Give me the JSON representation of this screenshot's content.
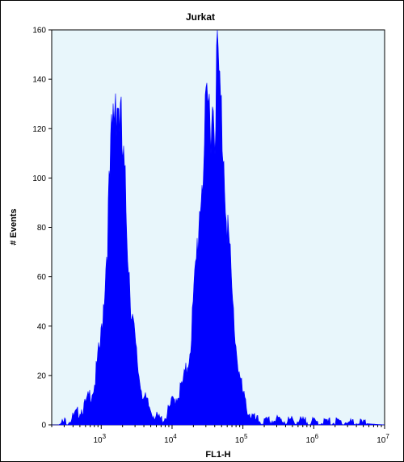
{
  "chart_data": {
    "type": "area",
    "title": "Jurkat",
    "xlabel": "FL1-H",
    "ylabel": "# Events",
    "x_scale": "log",
    "xlim": [
      200,
      10000000
    ],
    "ylim": [
      0,
      160
    ],
    "y_ticks": [
      "0",
      "20",
      "40",
      "60",
      "80",
      "100",
      "120",
      "140",
      "160"
    ],
    "x_ticks": [
      {
        "base": "10",
        "exp": "3",
        "value": 1000
      },
      {
        "base": "10",
        "exp": "4",
        "value": 10000
      },
      {
        "base": "10",
        "exp": "5",
        "value": 100000
      },
      {
        "base": "10",
        "exp": "6",
        "value": 1000000
      },
      {
        "base": "10",
        "exp": "7",
        "value": 10000000
      }
    ],
    "fill_color": "#0000ff",
    "plot_background": "#e8f6fb",
    "x": [
      250,
      400,
      600,
      800,
      1000,
      1200,
      1400,
      1600,
      1800,
      2000,
      2300,
      2600,
      3000,
      3500,
      4000,
      5000,
      6000,
      7000,
      8000,
      9000,
      10000,
      12000,
      14000,
      16000,
      18000,
      20000,
      22000,
      25000,
      28000,
      32000,
      36000,
      40000,
      44000,
      48000,
      52000,
      56000,
      60000,
      65000,
      70000,
      80000,
      90000,
      100000,
      120000,
      150000,
      200000,
      300000,
      1000000,
      3000000,
      10000000
    ],
    "y": [
      0,
      3,
      8,
      16,
      35,
      72,
      112,
      138,
      128,
      108,
      82,
      52,
      32,
      18,
      11,
      6,
      3,
      2,
      3,
      6,
      9,
      12,
      16,
      22,
      32,
      48,
      66,
      92,
      110,
      126,
      130,
      128,
      148,
      128,
      118,
      100,
      85,
      68,
      52,
      32,
      20,
      12,
      5,
      2,
      1,
      2,
      1,
      1,
      0
    ]
  }
}
